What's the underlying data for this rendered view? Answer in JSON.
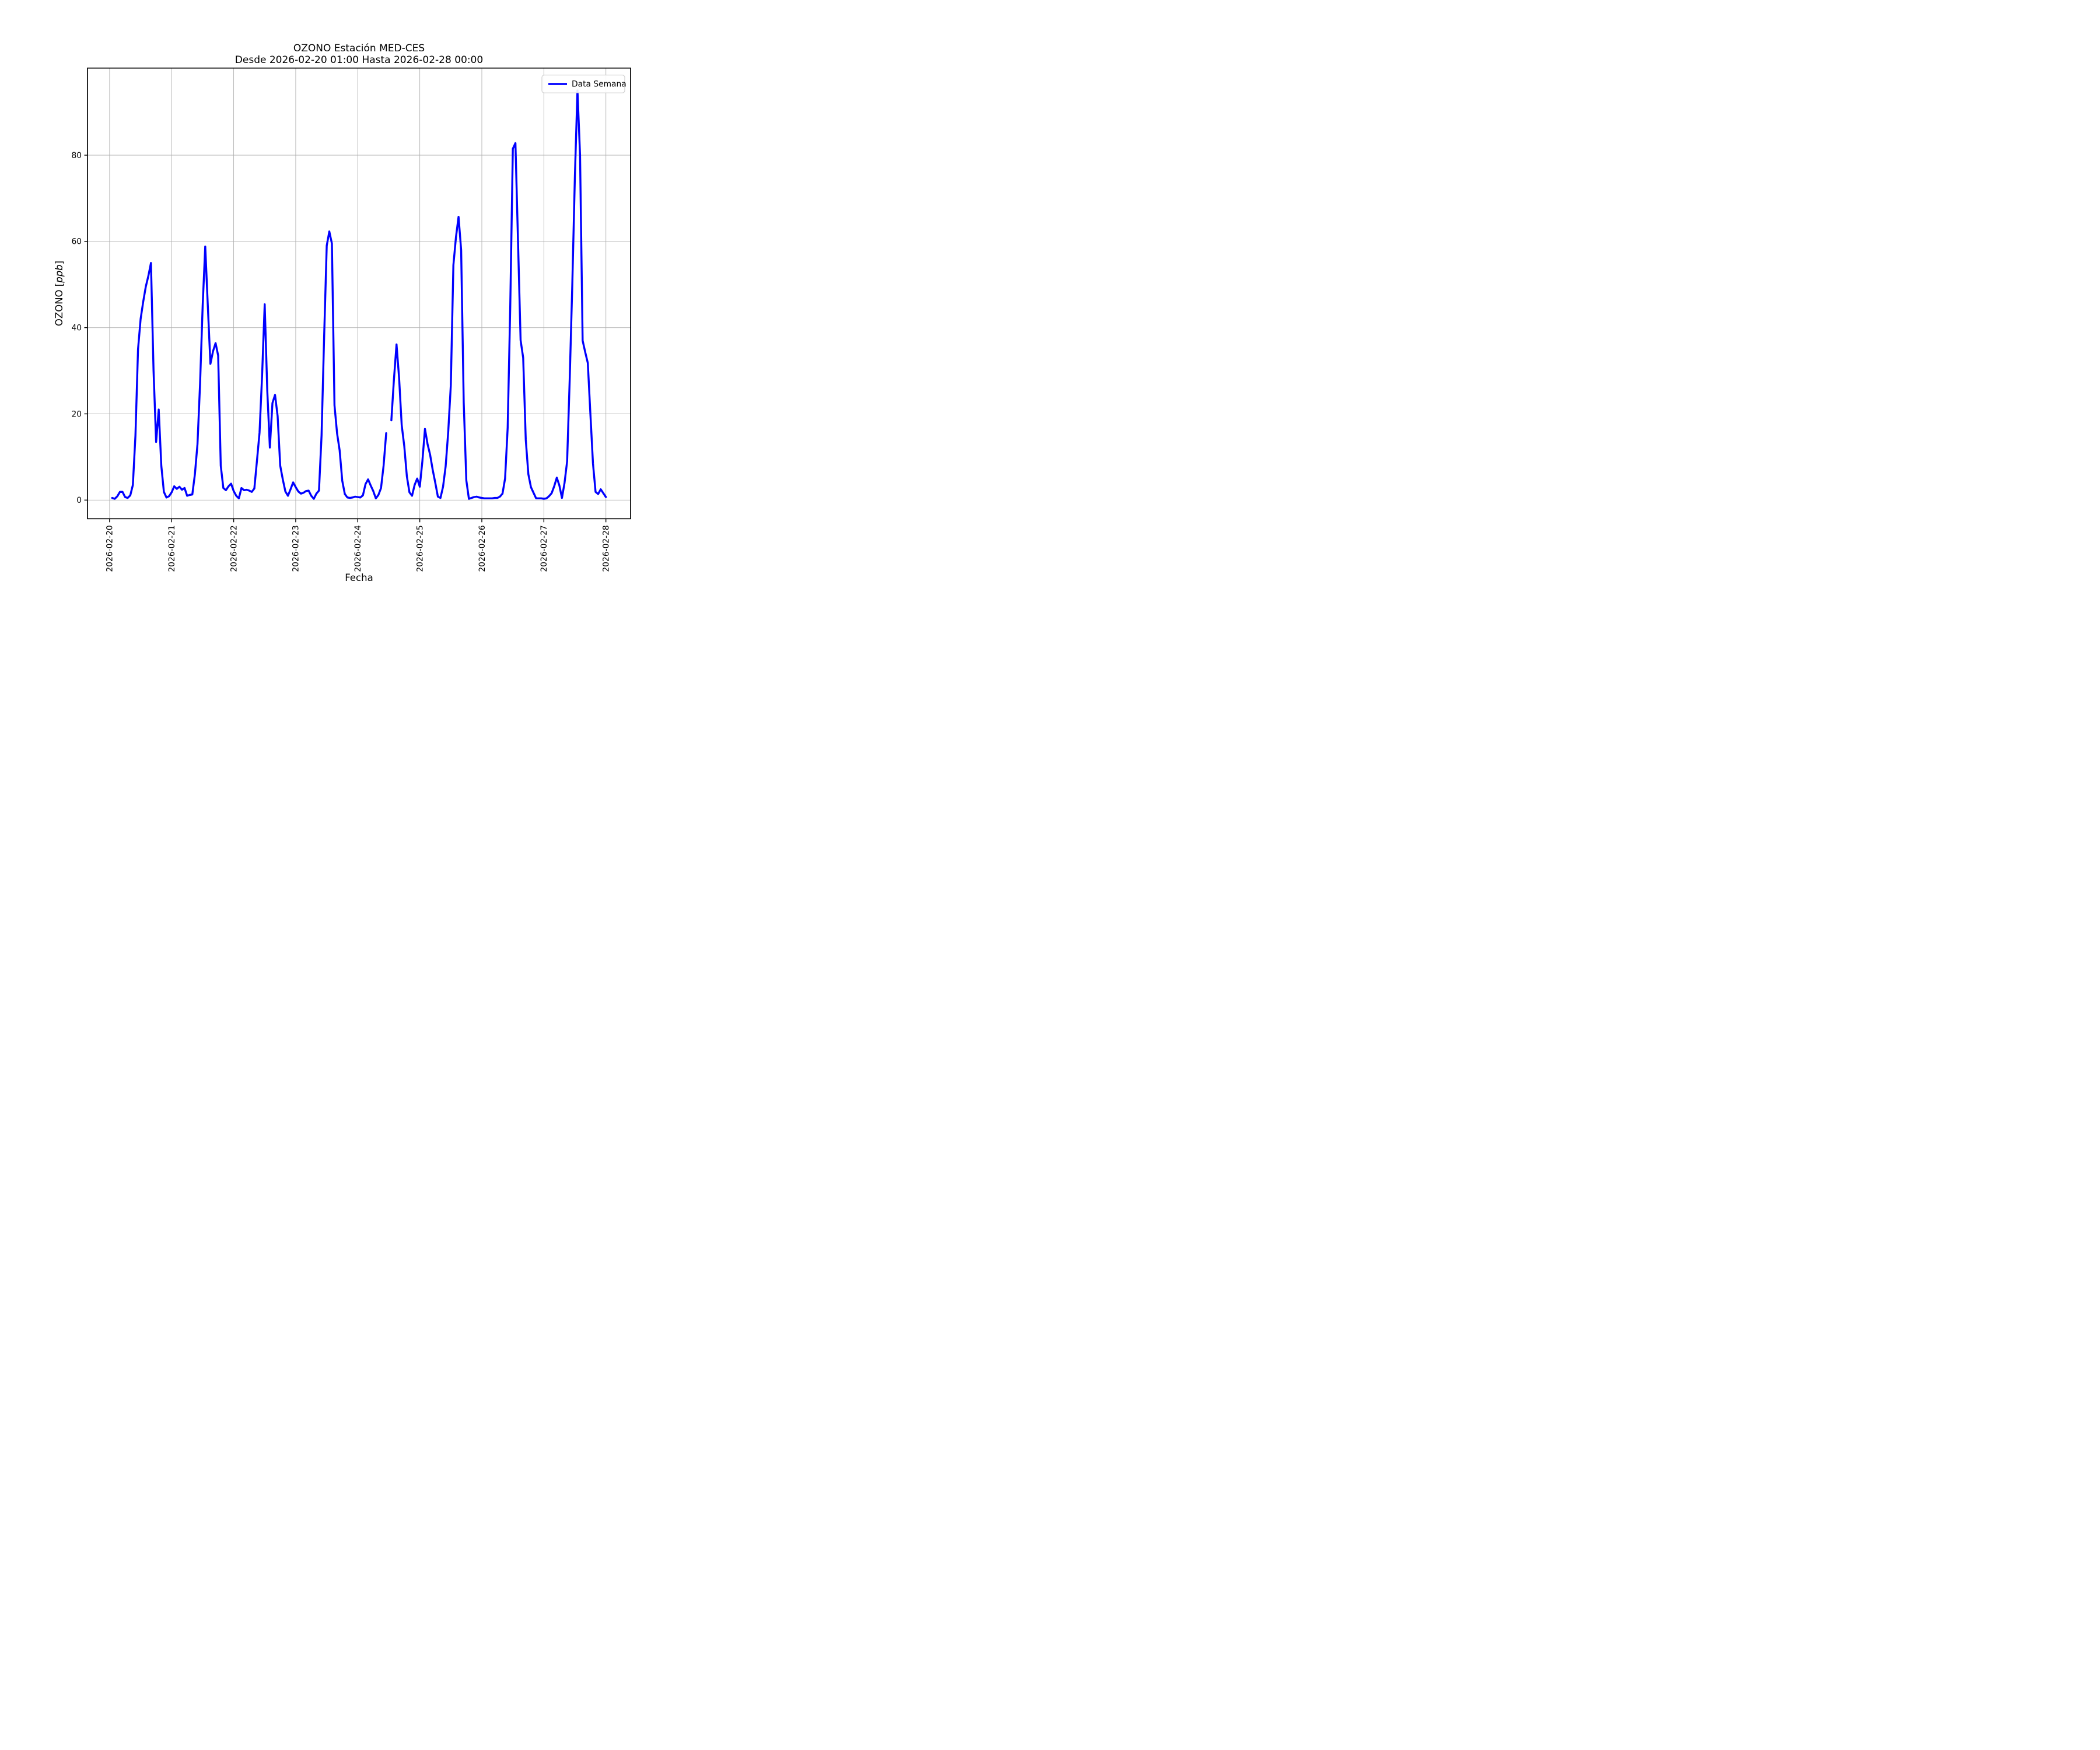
{
  "title": {
    "line1": "OZONO Estación MED-CES",
    "line2": "Desde 2026-02-20 01:00 Hasta 2026-02-28 00:00"
  },
  "legend": {
    "label": "Data Semana"
  },
  "axes": {
    "xlabel": "Fecha",
    "ylabel_prefix": "OZONO [",
    "ylabel_italic": "ppb",
    "ylabel_suffix": "]"
  },
  "colors": {
    "line": "#0000ff",
    "grid": "#b0b0b0",
    "spine": "#000000",
    "background": "#ffffff"
  },
  "chart_data": {
    "type": "line",
    "title": "OZONO Estación MED-CES — Desde 2026-02-20 01:00 Hasta 2026-02-28 00:00",
    "xlabel": "Fecha",
    "ylabel": "OZONO [ppb]",
    "grid": true,
    "legend_position": "upper right",
    "x_tick_labels": [
      "2026-02-20",
      "2026-02-21",
      "2026-02-22",
      "2026-02-23",
      "2026-02-24",
      "2026-02-25",
      "2026-02-26",
      "2026-02-27",
      "2026-02-28"
    ],
    "x_tick_hours": [
      0,
      24,
      48,
      72,
      96,
      120,
      144,
      168,
      192
    ],
    "y_ticks": [
      0,
      20,
      40,
      60,
      80
    ],
    "xlim_hours": [
      -8.55,
      201.55
    ],
    "ylim": [
      -4.33,
      100.2
    ],
    "series": [
      {
        "name": "Data Semana",
        "color": "#0000ff",
        "start": "2026-02-20 01:00",
        "interval_hours": 1,
        "note": "hourly ozone ppb; null = missing sample (visible line gap on 2026-02-24 ~12:00)",
        "values": [
          0.5,
          0.3,
          0.9,
          1.9,
          1.9,
          0.7,
          0.5,
          1.1,
          3.5,
          15,
          35,
          42,
          46,
          49.5,
          52,
          55,
          30,
          13.5,
          21,
          8,
          1.9,
          0.6,
          0.9,
          1.8,
          3.2,
          2.6,
          3.1,
          2.4,
          2.8,
          1.0,
          1.2,
          1.3,
          6,
          13,
          27,
          45,
          58.8,
          45,
          31.6,
          34.5,
          36.4,
          33.5,
          8,
          2.8,
          2.3,
          3.2,
          3.8,
          2.1,
          1.0,
          0.4,
          2.8,
          2.3,
          2.4,
          2.2,
          1.9,
          2.7,
          9.1,
          15.6,
          29,
          45.4,
          25.4,
          12.2,
          22.5,
          24.4,
          19.5,
          8,
          4.8,
          2.0,
          1.0,
          2.5,
          4.1,
          3.0,
          2.0,
          1.5,
          1.7,
          2.1,
          2.2,
          1.0,
          0.3,
          1.5,
          2.2,
          15,
          38,
          59,
          62.3,
          59.5,
          22,
          15.5,
          11.5,
          4.5,
          1.4,
          0.6,
          0.5,
          0.6,
          0.8,
          0.7,
          0.6,
          1.1,
          3.7,
          4.8,
          3.4,
          2.1,
          0.4,
          1.2,
          2.8,
          8,
          15.5,
          null,
          18.5,
          28,
          36.1,
          28.3,
          17.4,
          12.5,
          5.5,
          1.8,
          1.0,
          3.5,
          5.0,
          3.1,
          9,
          16.5,
          13,
          10.5,
          7,
          4,
          0.8,
          0.5,
          3.1,
          7.8,
          15.8,
          26.6,
          54.5,
          61,
          65.7,
          58,
          22.6,
          4.6,
          0.3,
          0.5,
          0.7,
          0.8,
          0.6,
          0.5,
          0.4,
          0.4,
          0.4,
          0.4,
          0.5,
          0.5,
          0.8,
          1.5,
          5,
          16.8,
          45,
          81.5,
          82.8,
          60,
          37.1,
          33,
          14,
          6,
          3.0,
          1.7,
          0.4,
          0.4,
          0.4,
          0.3,
          0.4,
          0.9,
          1.6,
          3.2,
          5.2,
          3.4,
          0.5,
          4,
          9,
          28,
          50,
          75,
          95,
          80,
          37,
          34.3,
          31.8,
          20,
          8.5,
          1.9,
          1.4,
          2.5,
          1.6,
          0.7
        ]
      }
    ]
  }
}
